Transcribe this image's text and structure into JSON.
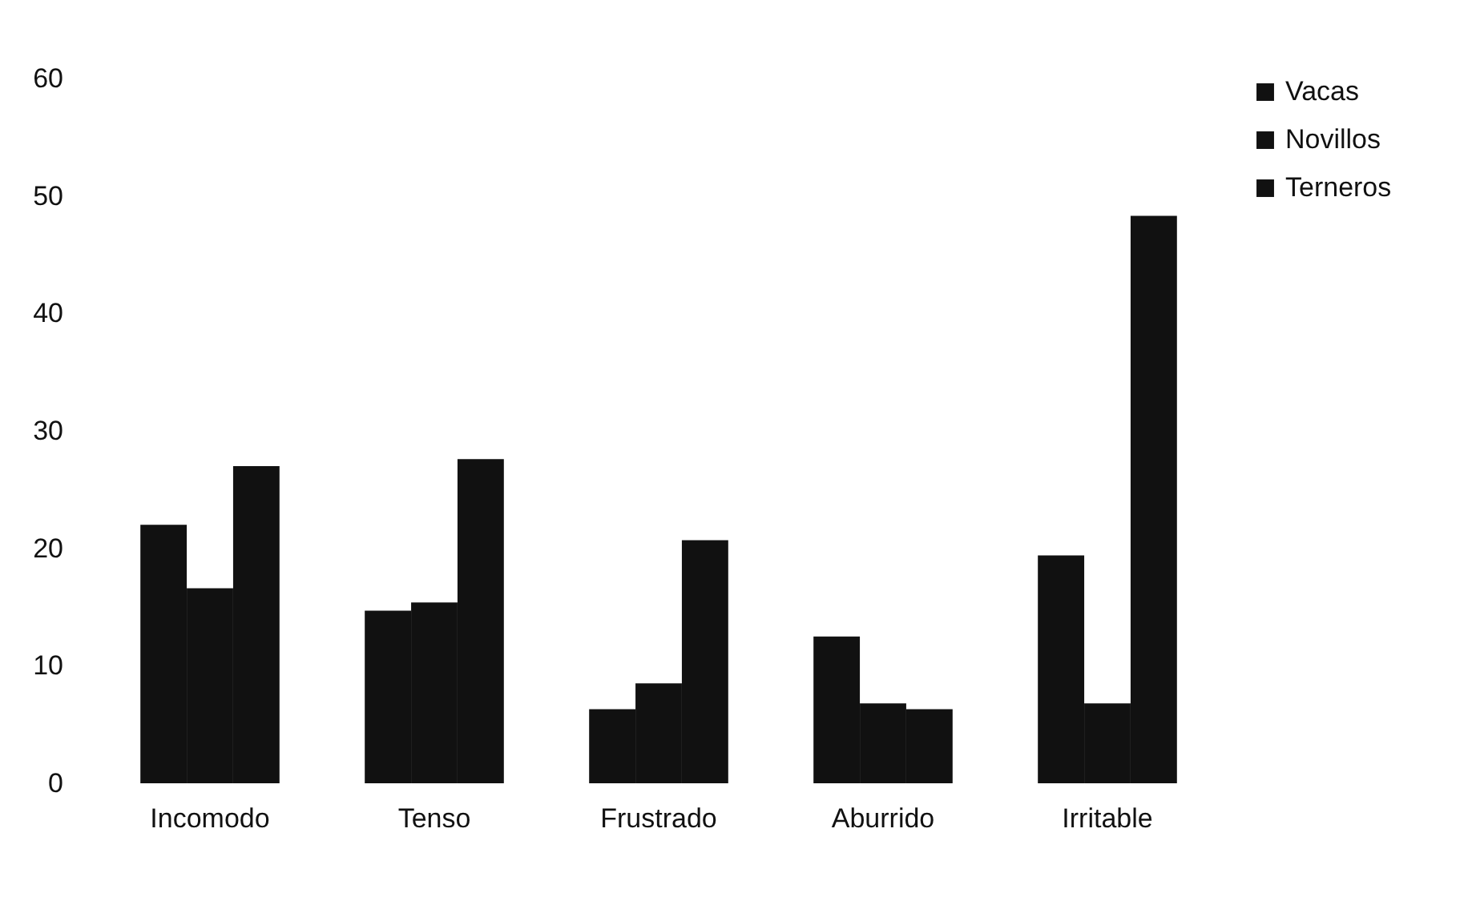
{
  "chart_data": {
    "type": "bar",
    "categories": [
      "Incomodo",
      "Tenso",
      "Frustrado",
      "Aburrido",
      "Irritable"
    ],
    "series": [
      {
        "name": "Vacas",
        "color": "#111111",
        "values": [
          22,
          14.7,
          6.3,
          12.5,
          19.4
        ]
      },
      {
        "name": "Novillos",
        "color": "#111111",
        "values": [
          16.6,
          15.4,
          8.5,
          6.8,
          6.8
        ]
      },
      {
        "name": "Terneros",
        "color": "#111111",
        "values": [
          27,
          27.6,
          20.7,
          6.3,
          48.3
        ]
      }
    ],
    "ylim": [
      0,
      60
    ],
    "yticks": [
      0,
      10,
      20,
      30,
      40,
      50,
      60
    ],
    "grid": false,
    "legend": "right"
  }
}
